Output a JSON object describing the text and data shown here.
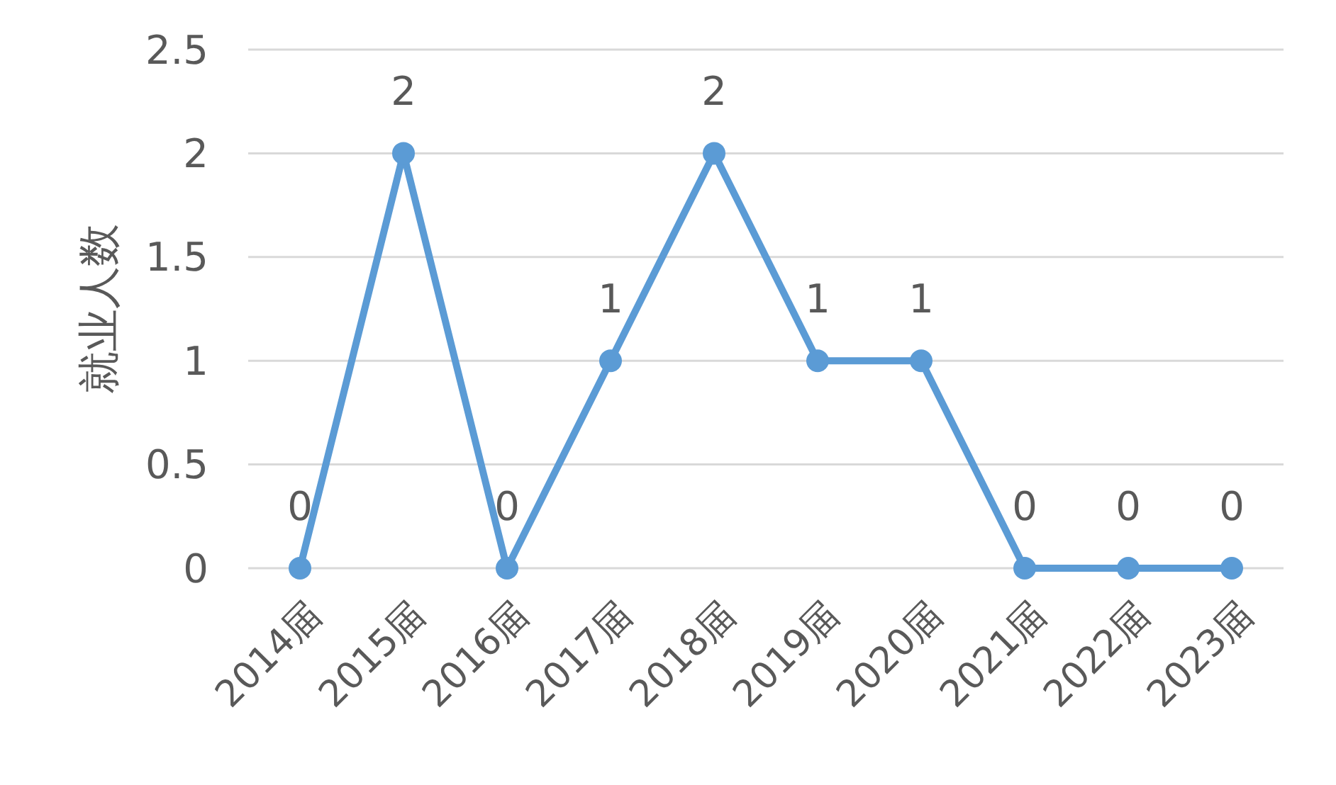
{
  "chart_data": {
    "type": "line",
    "ylabel": "就业人数",
    "categories": [
      "2014届",
      "2015届",
      "2016届",
      "2017届",
      "2018届",
      "2019届",
      "2020届",
      "2021届",
      "2022届",
      "2023届"
    ],
    "series": [
      {
        "color": "#5b9bd5",
        "values": [
          0,
          2,
          0,
          1,
          2,
          1,
          1,
          0,
          0,
          0
        ]
      }
    ],
    "ylim": [
      0,
      2.5
    ],
    "yticks": [
      0,
      0.5,
      1,
      1.5,
      2,
      2.5
    ],
    "grid": "y",
    "marker": "circle",
    "line_style": "solid",
    "data_labels": true
  }
}
